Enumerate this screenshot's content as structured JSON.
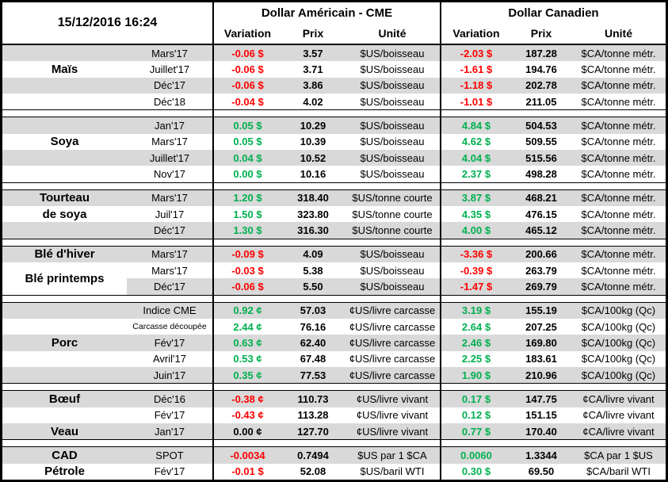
{
  "colors": {
    "red": "#FF0000",
    "green": "#00B050",
    "black": "#000000",
    "stripe": "#D9D9D9",
    "border": "#000000"
  },
  "chart_data": {
    "type": "table",
    "timestamp": "15/12/2016 16:24",
    "column_groups": [
      "Dollar Américain - CME",
      "Dollar Canadien"
    ],
    "columns": [
      "Variation",
      "Prix",
      "Unité"
    ],
    "sections": [
      {
        "rows": [
          {
            "commodity": "",
            "month": "Mars'17",
            "us_var": "-0.06 $",
            "us_color": "red",
            "us_prix": "3.57",
            "us_unit": "$US/boisseau",
            "ca_var": "-2.03 $",
            "ca_color": "red",
            "ca_prix": "187.28",
            "ca_unit": "$CA/tonne métr."
          },
          {
            "commodity": "Maïs",
            "month": "Juillet'17",
            "us_var": "-0.06 $",
            "us_color": "red",
            "us_prix": "3.71",
            "us_unit": "$US/boisseau",
            "ca_var": "-1.61 $",
            "ca_color": "red",
            "ca_prix": "194.76",
            "ca_unit": "$CA/tonne métr."
          },
          {
            "commodity": "",
            "month": "Déc'17",
            "us_var": "-0.06 $",
            "us_color": "red",
            "us_prix": "3.86",
            "us_unit": "$US/boisseau",
            "ca_var": "-1.18 $",
            "ca_color": "red",
            "ca_prix": "202.78",
            "ca_unit": "$CA/tonne métr."
          },
          {
            "commodity": "",
            "month": "Déc'18",
            "us_var": "-0.04 $",
            "us_color": "red",
            "us_prix": "4.02",
            "us_unit": "$US/boisseau",
            "ca_var": "-1.01 $",
            "ca_color": "red",
            "ca_prix": "211.05",
            "ca_unit": "$CA/tonne métr."
          }
        ]
      },
      {
        "rows": [
          {
            "commodity": "",
            "month": "Jan'17",
            "us_var": "0.05 $",
            "us_color": "green",
            "us_prix": "10.29",
            "us_unit": "$US/boisseau",
            "ca_var": "4.84 $",
            "ca_color": "green",
            "ca_prix": "504.53",
            "ca_unit": "$CA/tonne métr."
          },
          {
            "commodity": "Soya",
            "month": "Mars'17",
            "us_var": "0.05 $",
            "us_color": "green",
            "us_prix": "10.39",
            "us_unit": "$US/boisseau",
            "ca_var": "4.62 $",
            "ca_color": "green",
            "ca_prix": "509.55",
            "ca_unit": "$CA/tonne métr."
          },
          {
            "commodity": "",
            "month": "Juillet'17",
            "us_var": "0.04 $",
            "us_color": "green",
            "us_prix": "10.52",
            "us_unit": "$US/boisseau",
            "ca_var": "4.04 $",
            "ca_color": "green",
            "ca_prix": "515.56",
            "ca_unit": "$CA/tonne métr."
          },
          {
            "commodity": "",
            "month": "Nov'17",
            "us_var": "0.00 $",
            "us_color": "green",
            "us_prix": "10.16",
            "us_unit": "$US/boisseau",
            "ca_var": "2.37 $",
            "ca_color": "green",
            "ca_prix": "498.28",
            "ca_unit": "$CA/tonne métr."
          }
        ]
      },
      {
        "rows": [
          {
            "commodity": "Tourteau",
            "month": "Mars'17",
            "us_var": "1.20 $",
            "us_color": "green",
            "us_prix": "318.40",
            "us_unit": "$US/tonne courte",
            "ca_var": "3.87 $",
            "ca_color": "green",
            "ca_prix": "468.21",
            "ca_unit": "$CA/tonne métr."
          },
          {
            "commodity": "de soya",
            "month": "Juil'17",
            "us_var": "1.50 $",
            "us_color": "green",
            "us_prix": "323.80",
            "us_unit": "$US/tonne courte",
            "ca_var": "4.35 $",
            "ca_color": "green",
            "ca_prix": "476.15",
            "ca_unit": "$CA/tonne métr."
          },
          {
            "commodity": "",
            "month": "Déc'17",
            "us_var": "1.30 $",
            "us_color": "green",
            "us_prix": "316.30",
            "us_unit": "$US/tonne courte",
            "ca_var": "4.00 $",
            "ca_color": "green",
            "ca_prix": "465.12",
            "ca_unit": "$CA/tonne métr."
          }
        ]
      },
      {
        "rows": [
          {
            "commodity": "Blé d'hiver",
            "month": "Mars'17",
            "us_var": "-0.09 $",
            "us_color": "red",
            "us_prix": "4.09",
            "us_unit": "$US/boisseau",
            "ca_var": "-3.36 $",
            "ca_color": "red",
            "ca_prix": "200.66",
            "ca_unit": "$CA/tonne métr."
          },
          {
            "commodity": "Blé printemps",
            "straddle": true,
            "month": "Mars'17",
            "us_var": "-0.03 $",
            "us_color": "red",
            "us_prix": "5.38",
            "us_unit": "$US/boisseau",
            "ca_var": "-0.39 $",
            "ca_color": "red",
            "ca_prix": "263.79",
            "ca_unit": "$CA/tonne métr."
          },
          {
            "commodity": "",
            "commodity_white": true,
            "month": "Déc'17",
            "us_var": "-0.06 $",
            "us_color": "red",
            "us_prix": "5.50",
            "us_unit": "$US/boisseau",
            "ca_var": "-1.47 $",
            "ca_color": "red",
            "ca_prix": "269.79",
            "ca_unit": "$CA/tonne métr."
          }
        ]
      },
      {
        "rows": [
          {
            "commodity": "",
            "month": "Indice CME",
            "us_var": "0.92 ¢",
            "us_color": "green",
            "us_prix": "57.03",
            "us_unit": "¢US/livre carcasse",
            "ca_var": "3.19 $",
            "ca_color": "green",
            "ca_prix": "155.19",
            "ca_unit": "$CA/100kg (Qc)"
          },
          {
            "commodity": "",
            "month": "Carcasse découpée",
            "month_small": true,
            "us_var": "2.44 ¢",
            "us_color": "green",
            "us_prix": "76.16",
            "us_unit": "¢US/livre carcasse",
            "ca_var": "2.64 $",
            "ca_color": "green",
            "ca_prix": "207.25",
            "ca_unit": "$CA/100kg (Qc)"
          },
          {
            "commodity": "Porc",
            "month": "Fév'17",
            "us_var": "0.63 ¢",
            "us_color": "green",
            "us_prix": "62.40",
            "us_unit": "¢US/livre carcasse",
            "ca_var": "2.46 $",
            "ca_color": "green",
            "ca_prix": "169.80",
            "ca_unit": "$CA/100kg (Qc)"
          },
          {
            "commodity": "",
            "month": "Avril'17",
            "us_var": "0.53 ¢",
            "us_color": "green",
            "us_prix": "67.48",
            "us_unit": "¢US/livre carcasse",
            "ca_var": "2.25 $",
            "ca_color": "green",
            "ca_prix": "183.61",
            "ca_unit": "$CA/100kg (Qc)"
          },
          {
            "commodity": "",
            "month": "Juin'17",
            "us_var": "0.35 ¢",
            "us_color": "green",
            "us_prix": "77.53",
            "us_unit": "¢US/livre carcasse",
            "ca_var": "1.90 $",
            "ca_color": "green",
            "ca_prix": "210.96",
            "ca_unit": "$CA/100kg (Qc)"
          }
        ]
      },
      {
        "rows": [
          {
            "commodity": "Bœuf",
            "month": "Déc'16",
            "us_var": "-0.38 ¢",
            "us_color": "red",
            "us_prix": "110.73",
            "us_unit": "¢US/livre vivant",
            "ca_var": "0.17 $",
            "ca_color": "green",
            "ca_prix": "147.75",
            "ca_unit": "¢CA/livre vivant"
          },
          {
            "commodity": "",
            "month": "Fév'17",
            "us_var": "-0.43 ¢",
            "us_color": "red",
            "us_prix": "113.28",
            "us_unit": "¢US/livre vivant",
            "ca_var": "0.12 $",
            "ca_color": "green",
            "ca_prix": "151.15",
            "ca_unit": "¢CA/livre vivant"
          },
          {
            "commodity": "Veau",
            "month": "Jan'17",
            "us_var": "0.00 ¢",
            "us_color": "black",
            "us_prix": "127.70",
            "us_unit": "¢US/livre vivant",
            "ca_var": "0.77 $",
            "ca_color": "green",
            "ca_prix": "170.40",
            "ca_unit": "¢CA/livre vivant"
          }
        ]
      },
      {
        "rows": [
          {
            "commodity": "CAD",
            "month": "SPOT",
            "us_var": "-0.0034",
            "us_color": "red",
            "us_prix": "0.7494",
            "us_unit": "$US par 1 $CA",
            "ca_var": "0.0060",
            "ca_color": "green",
            "ca_prix": "1.3344",
            "ca_unit": "$CA par 1 $US"
          },
          {
            "commodity": "Pétrole",
            "month": "Fév'17",
            "us_var": "-0.01 $",
            "us_color": "red",
            "us_prix": "52.08",
            "us_unit": "$US/baril WTI",
            "ca_var": "0.30 $",
            "ca_color": "green",
            "ca_prix": "69.50",
            "ca_unit": "$CA/baril WTI"
          }
        ]
      }
    ]
  }
}
